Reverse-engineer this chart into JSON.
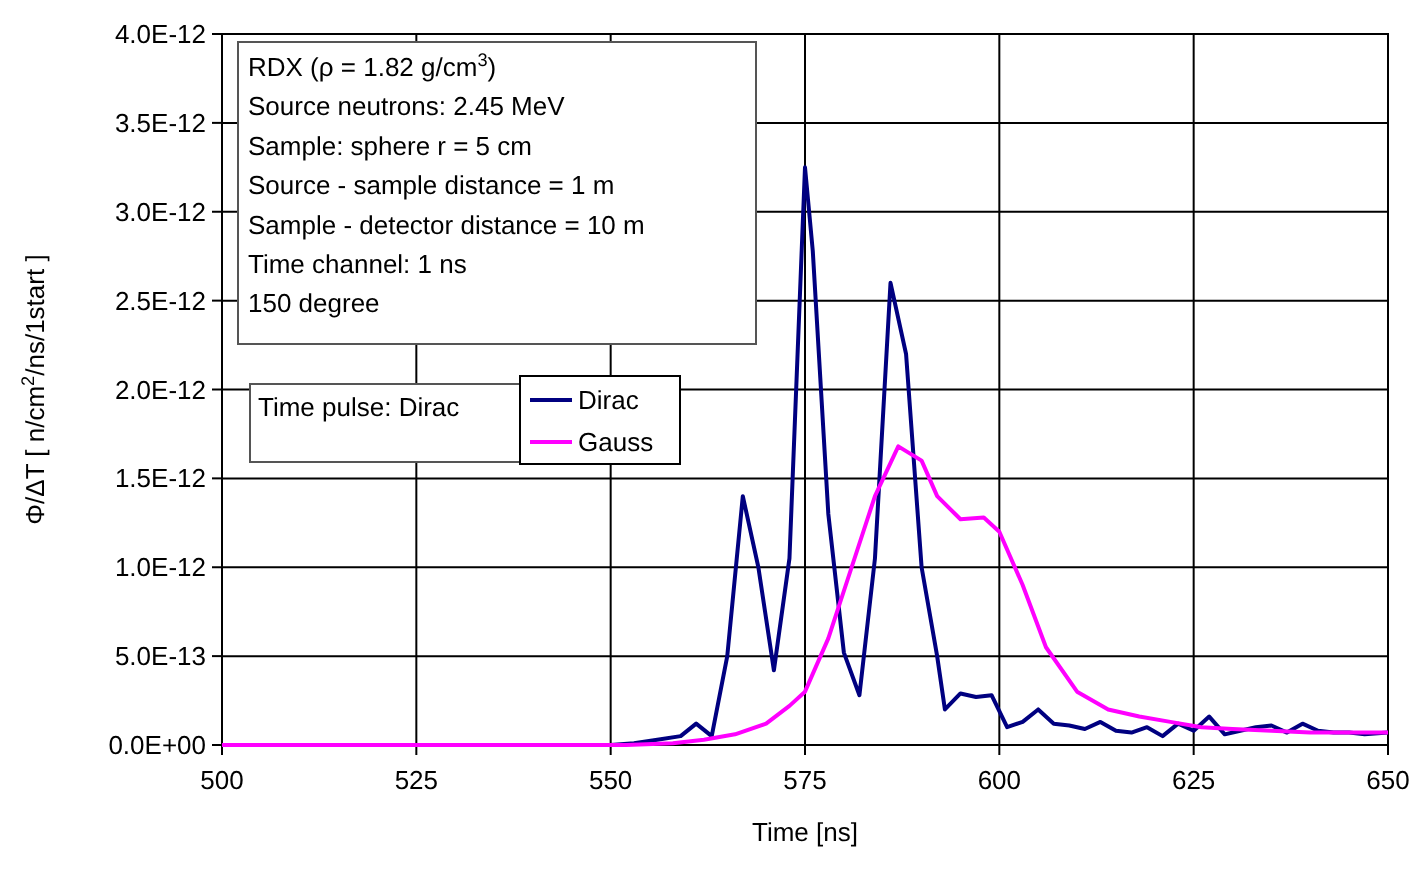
{
  "chart_data": {
    "type": "line",
    "xlabel": "Time [ns]",
    "ylabel": "Φ/ΔT [ n/cm$^{2}$/ns/1start ]",
    "xlim": [
      500,
      650
    ],
    "xticks": [
      500,
      525,
      550,
      575,
      600,
      625,
      650
    ],
    "ylim": [
      0,
      4e-12
    ],
    "yticks": [
      {
        "value": 0,
        "label": "0.0E+00"
      },
      {
        "value": 5e-13,
        "label": "5.0E-13"
      },
      {
        "value": 1e-12,
        "label": "1.0E-12"
      },
      {
        "value": 1.5e-12,
        "label": "1.5E-12"
      },
      {
        "value": 2e-12,
        "label": "2.0E-12"
      },
      {
        "value": 2.5e-12,
        "label": "2.5E-12"
      },
      {
        "value": 3e-12,
        "label": "3.0E-12"
      },
      {
        "value": 3.5e-12,
        "label": "3.5E-12"
      },
      {
        "value": 4e-12,
        "label": "4.0E-12"
      }
    ],
    "grid": true,
    "legend": "left",
    "line_style": "solid",
    "annotations": [
      "RDX (ρ = 1.82 g/cm$^{3}$)",
      "Source neutrons: 2.45 MeV",
      "Sample: sphere r = 5 cm",
      "Source - sample distance = 1 m",
      "Sample - detector distance = 10 m",
      "Time channel: 1 ns",
      "150 degree",
      "Time pulse: Dirac"
    ],
    "series": [
      {
        "name": "Dirac",
        "color": "#000080",
        "x": [
          500,
          550,
          553,
          556,
          559,
          561,
          563,
          565,
          567,
          569,
          571,
          573,
          575,
          576,
          578,
          580,
          582,
          584,
          586,
          588,
          590,
          592,
          593,
          595,
          597,
          599,
          601,
          603,
          605,
          607,
          609,
          611,
          613,
          615,
          617,
          619,
          621,
          623,
          625,
          627,
          629,
          631,
          633,
          635,
          637,
          639,
          641,
          643,
          645,
          647,
          650
        ],
        "values": [
          0,
          0,
          1e-14,
          3e-14,
          5e-14,
          1.2e-13,
          5e-14,
          5e-13,
          1.4e-12,
          1e-12,
          4.2e-13,
          1.05e-12,
          3.25e-12,
          2.78e-12,
          1.3e-12,
          5.2e-13,
          2.8e-13,
          1.05e-12,
          2.6e-12,
          2.2e-12,
          1e-12,
          5e-13,
          2e-13,
          2.9e-13,
          2.7e-13,
          2.8e-13,
          1e-13,
          1.3e-13,
          2e-13,
          1.2e-13,
          1.1e-13,
          9e-14,
          1.3e-13,
          8e-14,
          7e-14,
          1e-13,
          5e-14,
          1.2e-13,
          8e-14,
          1.6e-13,
          6e-14,
          8e-14,
          1e-13,
          1.1e-13,
          7e-14,
          1.2e-13,
          8e-14,
          7e-14,
          7e-14,
          6e-14,
          7e-14
        ]
      },
      {
        "name": "Gauss",
        "color": "#ff00ff",
        "x": [
          500,
          552,
          558,
          562,
          566,
          570,
          573,
          575,
          578,
          581,
          584,
          587,
          590,
          592,
          595,
          598,
          600,
          603,
          606,
          610,
          614,
          618,
          622,
          626,
          630,
          635,
          640,
          645,
          650
        ],
        "values": [
          0,
          0,
          1e-14,
          3e-14,
          6e-14,
          1.2e-13,
          2.2e-13,
          3e-13,
          6e-13,
          1e-12,
          1.4e-12,
          1.68e-12,
          1.6e-12,
          1.4e-12,
          1.27e-12,
          1.28e-12,
          1.2e-12,
          9e-13,
          5.5e-13,
          3e-13,
          2e-13,
          1.6e-13,
          1.3e-13,
          1e-13,
          9e-14,
          8e-14,
          7e-14,
          7e-14,
          7e-14
        ]
      }
    ]
  }
}
